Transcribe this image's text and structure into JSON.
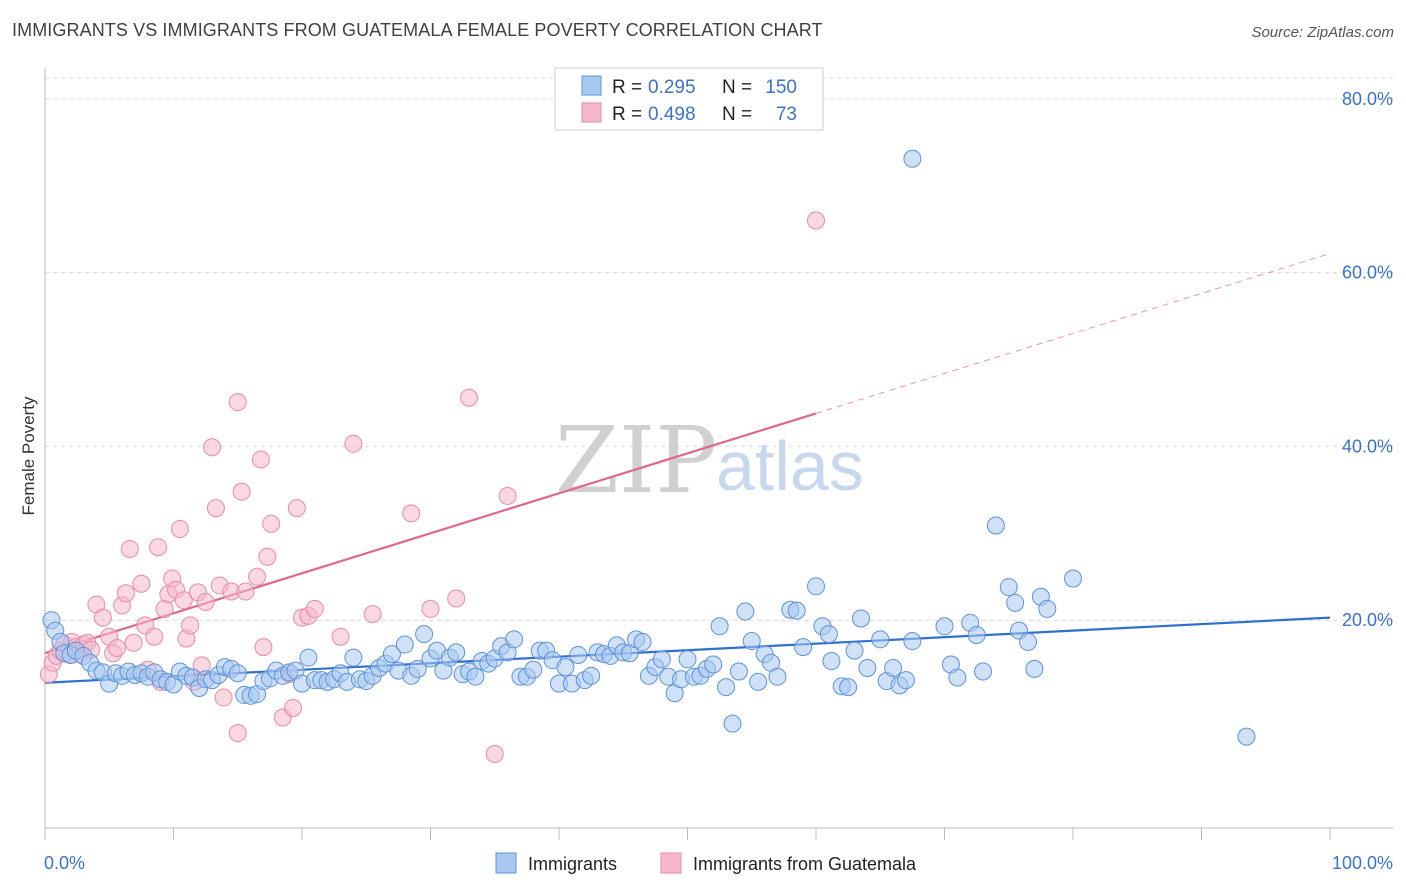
{
  "title": "IMMIGRANTS VS IMMIGRANTS FROM GUATEMALA FEMALE POVERTY CORRELATION CHART",
  "source": "Source: ZipAtlas.com",
  "watermark": {
    "zip": "ZIP",
    "atlas": "atlas"
  },
  "legend_top": {
    "rows": [
      {
        "r_label": "R =",
        "r_value": "0.295",
        "n_label": "N =",
        "n_value": "150"
      },
      {
        "r_label": "R =",
        "r_value": "0.498",
        "n_label": "N =",
        "n_value": "73"
      }
    ]
  },
  "legend_bottom": {
    "items": [
      "Immigrants",
      "Immigrants from Guatemala"
    ]
  },
  "colors": {
    "blue_fill": "#a9c8f0",
    "blue_stroke": "#5b93d9",
    "blue_line": "#2f6fcf",
    "pink_fill": "#f6b8cb",
    "pink_stroke": "#e98aa8",
    "pink_line": "#e0668f",
    "grid": "#d9d9d9",
    "tick_text": "#3a73c8"
  },
  "chart_data": {
    "type": "scatter",
    "title": "IMMIGRANTS VS IMMIGRANTS FROM GUATEMALA FEMALE POVERTY CORRELATION CHART",
    "xlabel": "",
    "ylabel": "Female Poverty",
    "xlim": [
      0,
      100
    ],
    "ylim": [
      0,
      85
    ],
    "x_tick_labels": [
      "0.0%",
      "100.0%"
    ],
    "y_ticks": [
      20,
      40,
      60,
      80
    ],
    "y_tick_labels": [
      "20.0%",
      "40.0%",
      "60.0%",
      "80.0%"
    ],
    "grid": true,
    "legend_position": "top-center",
    "series": [
      {
        "name": "Immigrants",
        "r": 0.295,
        "n": 150,
        "trend": {
          "x0": 0,
          "y0": 12.8,
          "x1": 100,
          "y1": 20.3,
          "style": "solid"
        },
        "points": [
          [
            0.5,
            20
          ],
          [
            0.8,
            18.8
          ],
          [
            1.2,
            17.5
          ],
          [
            1.5,
            16.2
          ],
          [
            2,
            16
          ],
          [
            2.4,
            16.5
          ],
          [
            3,
            15.9
          ],
          [
            3.5,
            15.1
          ],
          [
            4,
            14.2
          ],
          [
            4.5,
            14
          ],
          [
            5,
            12.7
          ],
          [
            5.5,
            13.9
          ],
          [
            6,
            13.6
          ],
          [
            6.5,
            14.1
          ],
          [
            7,
            13.7
          ],
          [
            7.5,
            13.9
          ],
          [
            8,
            13.5
          ],
          [
            8.5,
            14
          ],
          [
            9,
            13.2
          ],
          [
            9.5,
            12.9
          ],
          [
            10,
            12.6
          ],
          [
            10.5,
            14.1
          ],
          [
            11,
            13.6
          ],
          [
            11.5,
            13.4
          ],
          [
            12,
            12.2
          ],
          [
            12.5,
            13.2
          ],
          [
            13,
            13.1
          ],
          [
            13.5,
            13.7
          ],
          [
            14,
            14.6
          ],
          [
            14.5,
            14.4
          ],
          [
            15,
            13.9
          ],
          [
            15.5,
            11.4
          ],
          [
            16,
            11.3
          ],
          [
            16.5,
            11.5
          ],
          [
            17,
            13
          ],
          [
            17.5,
            13.3
          ],
          [
            18,
            14.2
          ],
          [
            18.5,
            13.6
          ],
          [
            19,
            14
          ],
          [
            19.5,
            14.2
          ],
          [
            20,
            12.7
          ],
          [
            20.5,
            15.7
          ],
          [
            21,
            13.1
          ],
          [
            21.5,
            13.1
          ],
          [
            22,
            12.9
          ],
          [
            22.5,
            13.2
          ],
          [
            23,
            13.9
          ],
          [
            23.5,
            12.9
          ],
          [
            24,
            15.7
          ],
          [
            24.5,
            13.2
          ],
          [
            25,
            13
          ],
          [
            25.5,
            13.6
          ],
          [
            26,
            14.5
          ],
          [
            26.5,
            15
          ],
          [
            27,
            16.1
          ],
          [
            27.5,
            14.2
          ],
          [
            28,
            17.2
          ],
          [
            28.5,
            13.6
          ],
          [
            29,
            14.4
          ],
          [
            29.5,
            18.4
          ],
          [
            30,
            15.6
          ],
          [
            30.5,
            16.5
          ],
          [
            31,
            14.2
          ],
          [
            31.5,
            15.7
          ],
          [
            32,
            16.3
          ],
          [
            32.5,
            13.8
          ],
          [
            33,
            14.1
          ],
          [
            33.5,
            13.5
          ],
          [
            34,
            15.3
          ],
          [
            34.5,
            15
          ],
          [
            35,
            15.6
          ],
          [
            35.5,
            17
          ],
          [
            36,
            16.3
          ],
          [
            36.5,
            17.8
          ],
          [
            37,
            13.5
          ],
          [
            37.5,
            13.5
          ],
          [
            38,
            14.3
          ],
          [
            38.5,
            16.5
          ],
          [
            39,
            16.5
          ],
          [
            39.5,
            15.4
          ],
          [
            40,
            12.7
          ],
          [
            40.5,
            14.6
          ],
          [
            41,
            12.7
          ],
          [
            41.5,
            16
          ],
          [
            42,
            13.1
          ],
          [
            42.5,
            13.6
          ],
          [
            43,
            16.3
          ],
          [
            43.5,
            16.1
          ],
          [
            44,
            15.9
          ],
          [
            44.5,
            17.1
          ],
          [
            45,
            16.3
          ],
          [
            45.5,
            16.2
          ],
          [
            46,
            17.8
          ],
          [
            46.5,
            17.5
          ],
          [
            47,
            13.6
          ],
          [
            47.5,
            14.6
          ],
          [
            48,
            15.5
          ],
          [
            48.5,
            13.5
          ],
          [
            49,
            11.6
          ],
          [
            49.5,
            13.2
          ],
          [
            50,
            15.5
          ],
          [
            50.5,
            13.5
          ],
          [
            51,
            13.6
          ],
          [
            51.5,
            14.4
          ],
          [
            52,
            14.9
          ],
          [
            52.5,
            19.3
          ],
          [
            53,
            12.3
          ],
          [
            53.5,
            8.1
          ],
          [
            54,
            14.1
          ],
          [
            54.5,
            21
          ],
          [
            55,
            17.6
          ],
          [
            55.5,
            12.9
          ],
          [
            56,
            16.1
          ],
          [
            56.5,
            15.1
          ],
          [
            57,
            13.5
          ],
          [
            58,
            21.2
          ],
          [
            58.5,
            21.1
          ],
          [
            59,
            16.9
          ],
          [
            60,
            23.9
          ],
          [
            60.5,
            19.3
          ],
          [
            61,
            18.4
          ],
          [
            61.2,
            15.3
          ],
          [
            62,
            12.4
          ],
          [
            62.5,
            12.3
          ],
          [
            63,
            16.5
          ],
          [
            63.5,
            20.2
          ],
          [
            64,
            14.5
          ],
          [
            65,
            17.8
          ],
          [
            65.5,
            13
          ],
          [
            66,
            14.5
          ],
          [
            66.5,
            12.5
          ],
          [
            67,
            13.1
          ],
          [
            67.5,
            17.6
          ],
          [
            70,
            19.3
          ],
          [
            70.5,
            14.9
          ],
          [
            71,
            13.4
          ],
          [
            72,
            19.7
          ],
          [
            72.5,
            18.3
          ],
          [
            73,
            14.1
          ],
          [
            74,
            30.9
          ],
          [
            75,
            23.8
          ],
          [
            75.5,
            22
          ],
          [
            75.8,
            18.8
          ],
          [
            76.5,
            17.5
          ],
          [
            77,
            14.4
          ],
          [
            77.5,
            22.7
          ],
          [
            78,
            21.3
          ],
          [
            80,
            24.8
          ],
          [
            67.5,
            73.1
          ],
          [
            93.5,
            6.6
          ]
        ]
      },
      {
        "name": "Immigrants from Guatemala",
        "r": 0.498,
        "n": 73,
        "trend": {
          "x0": 0,
          "y0": 16.2,
          "x1": 60,
          "y1": 43.8,
          "x2": 100,
          "y2": 62.2,
          "style": "solid-then-dashed"
        },
        "points": [
          [
            0.3,
            13.8
          ],
          [
            0.6,
            15.1
          ],
          [
            0.9,
            15.9
          ],
          [
            1.2,
            16.5
          ],
          [
            1.5,
            17.2
          ],
          [
            1.8,
            16.1
          ],
          [
            2.1,
            17.5
          ],
          [
            2.4,
            16.9
          ],
          [
            2.7,
            16.1
          ],
          [
            3,
            17.2
          ],
          [
            3.3,
            17.4
          ],
          [
            3.6,
            16.6
          ],
          [
            4,
            21.8
          ],
          [
            4.5,
            20.3
          ],
          [
            5,
            18.1
          ],
          [
            5.3,
            16.2
          ],
          [
            5.6,
            16.8
          ],
          [
            6,
            21.7
          ],
          [
            6.3,
            23.1
          ],
          [
            6.6,
            28.2
          ],
          [
            6.9,
            17.4
          ],
          [
            7.5,
            24.2
          ],
          [
            7.8,
            19.4
          ],
          [
            8,
            14.3
          ],
          [
            8.5,
            18.1
          ],
          [
            8.8,
            28.4
          ],
          [
            9,
            12.9
          ],
          [
            9.3,
            21.3
          ],
          [
            9.6,
            23
          ],
          [
            9.9,
            24.8
          ],
          [
            10.2,
            23.5
          ],
          [
            10.5,
            30.5
          ],
          [
            10.8,
            22.3
          ],
          [
            11,
            17.9
          ],
          [
            11.3,
            19.4
          ],
          [
            11.6,
            12.9
          ],
          [
            11.9,
            23.2
          ],
          [
            12.2,
            14.8
          ],
          [
            12.5,
            22.1
          ],
          [
            13,
            39.9
          ],
          [
            13.3,
            32.9
          ],
          [
            13.6,
            24
          ],
          [
            13.9,
            11.1
          ],
          [
            14.5,
            23.3
          ],
          [
            15,
            45.1
          ],
          [
            15,
            7
          ],
          [
            15.3,
            34.8
          ],
          [
            15.6,
            23.3
          ],
          [
            16.5,
            25
          ],
          [
            16.8,
            38.5
          ],
          [
            17,
            16.9
          ],
          [
            17.3,
            27.3
          ],
          [
            17.6,
            31.1
          ],
          [
            18.5,
            8.8
          ],
          [
            19,
            13.8
          ],
          [
            19.3,
            9.9
          ],
          [
            19.6,
            32.9
          ],
          [
            20,
            20.3
          ],
          [
            20.5,
            20.5
          ],
          [
            21,
            21.3
          ],
          [
            23,
            18.1
          ],
          [
            24,
            40.3
          ],
          [
            25.5,
            20.7
          ],
          [
            28.5,
            32.3
          ],
          [
            30,
            21.3
          ],
          [
            32,
            22.5
          ],
          [
            33,
            45.6
          ],
          [
            35,
            4.6
          ],
          [
            36,
            34.3
          ],
          [
            60,
            66
          ]
        ]
      }
    ]
  }
}
